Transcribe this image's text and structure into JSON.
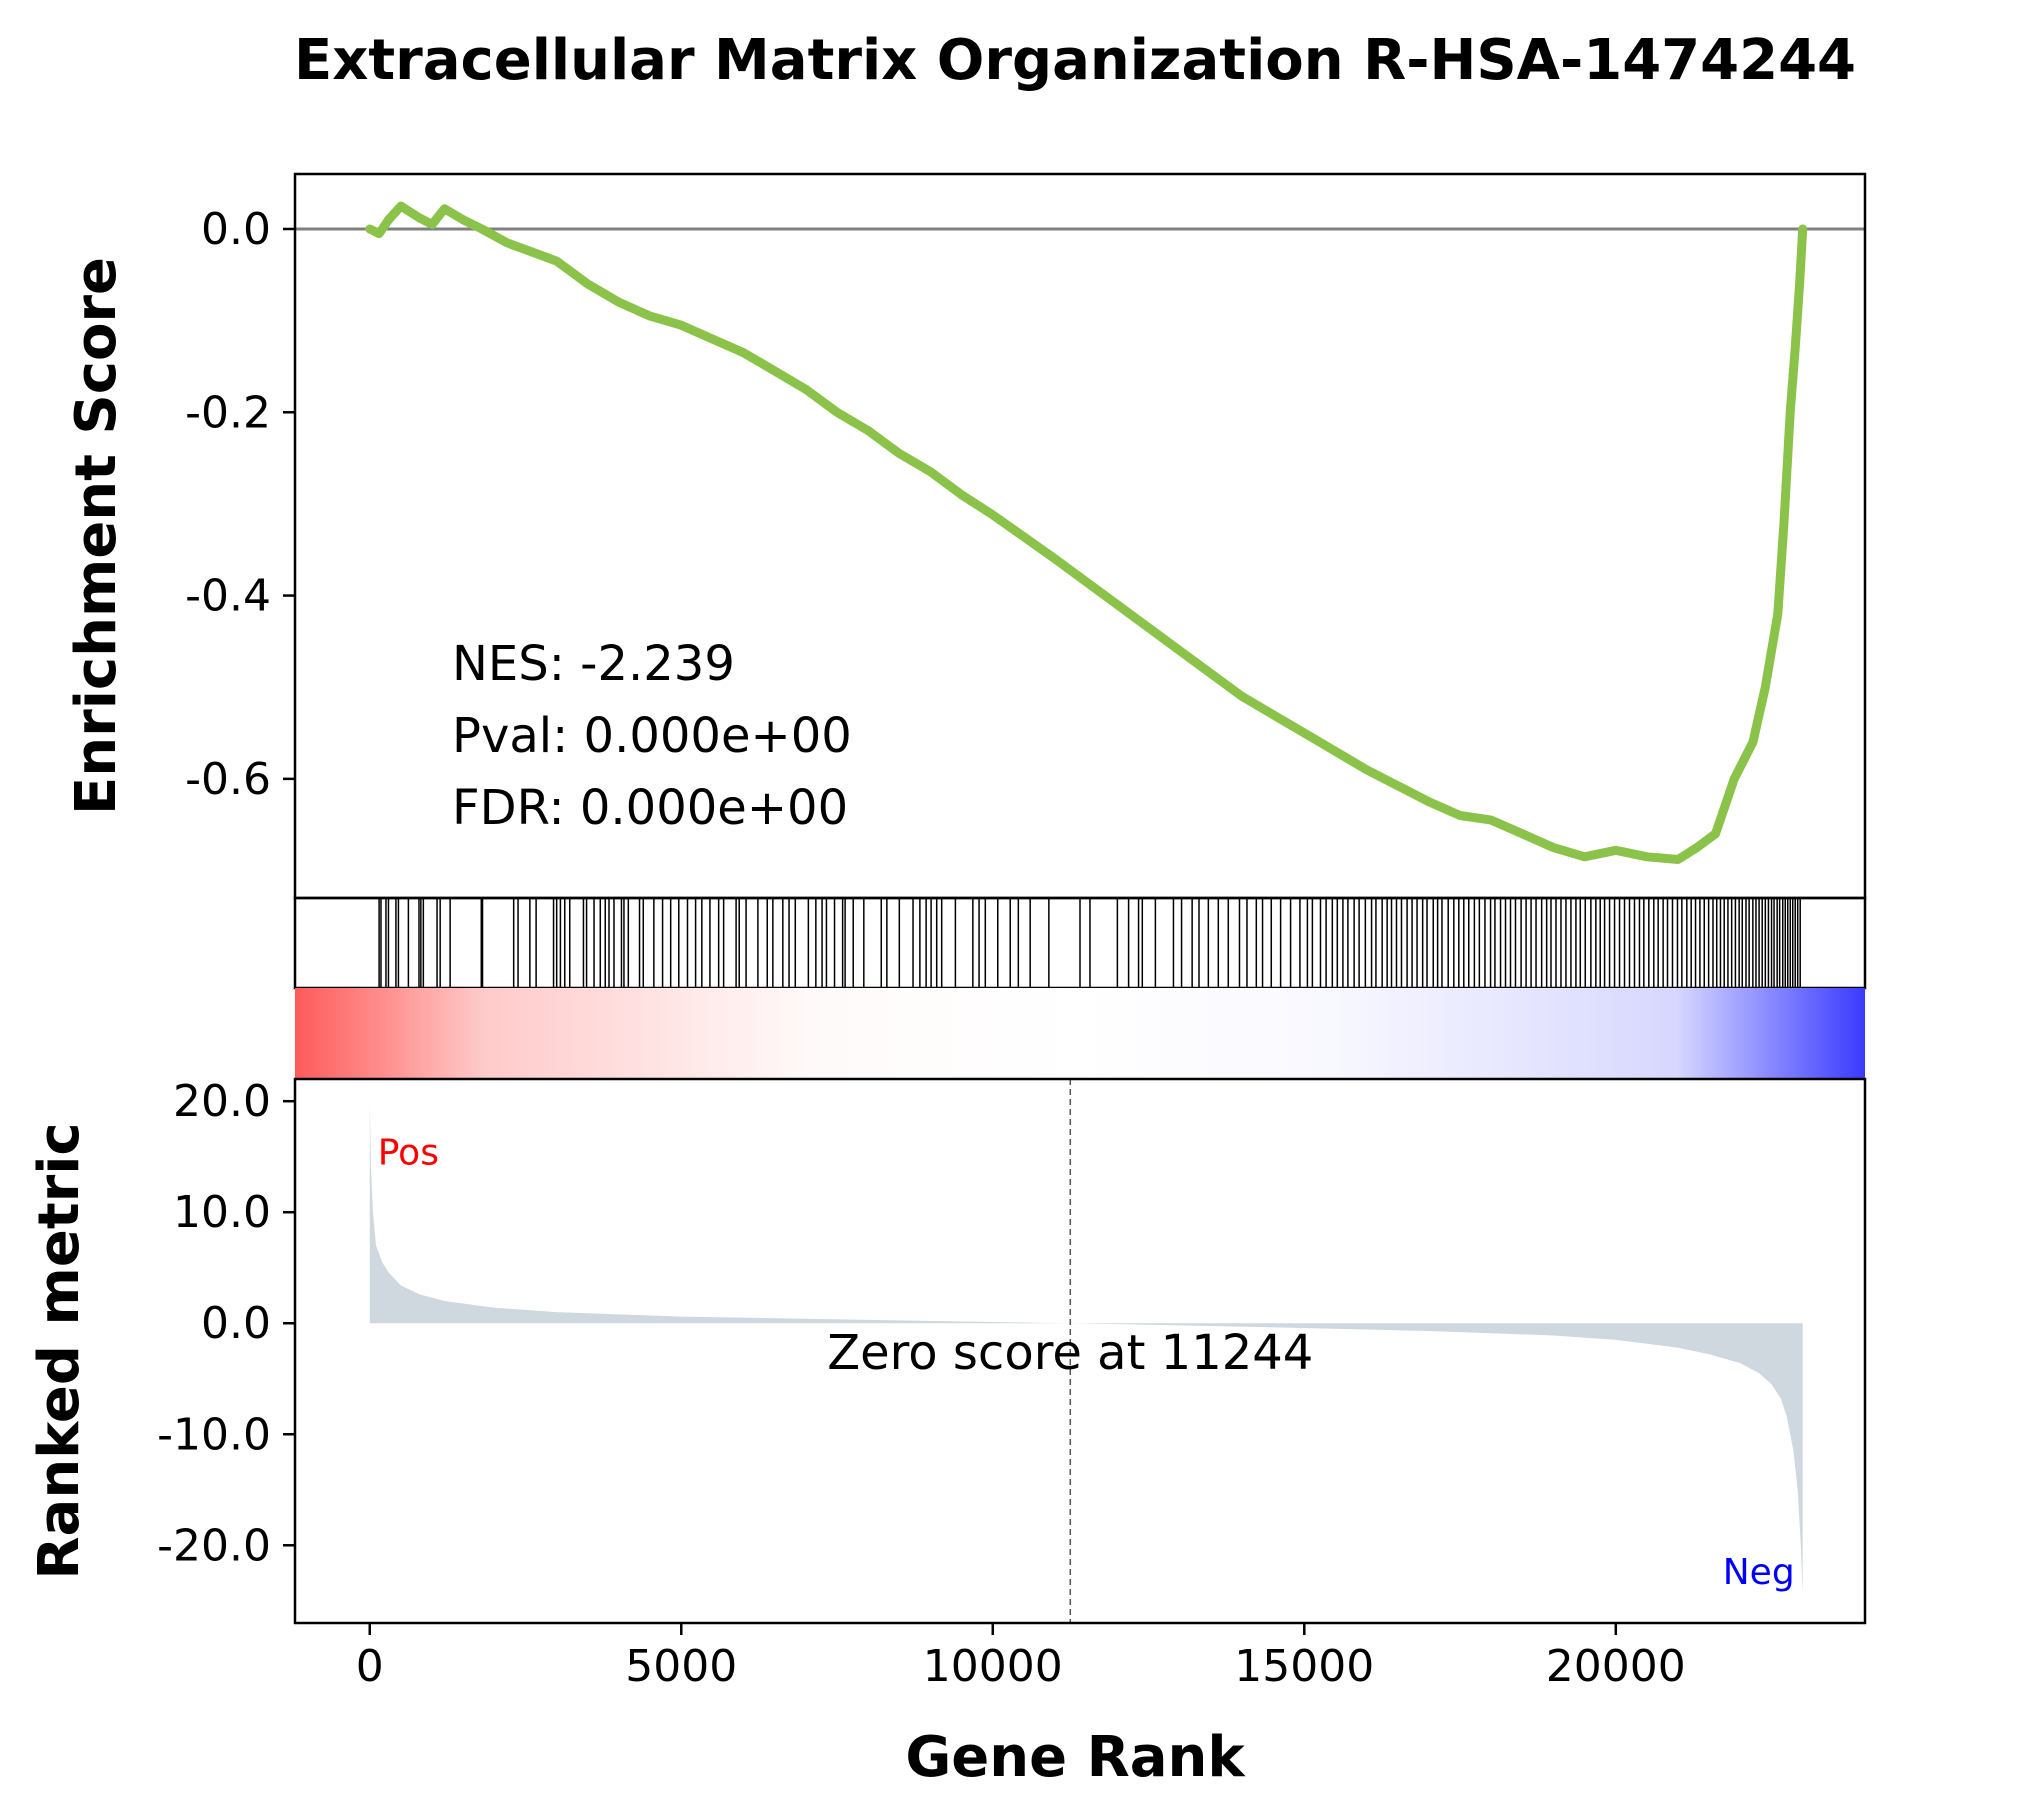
{
  "chart_data": {
    "type": "line",
    "title": "Extracellular Matrix Organization R-HSA-1474244",
    "colors": {
      "es_line": "#8bc34a",
      "baseline": "#808080",
      "metric_fill": "#cfd8df",
      "pos": "#ff0000",
      "neg": "#0000ff",
      "hits": "#000000"
    },
    "xlabel": "Gene Rank",
    "xlim": [
      -1200,
      24000
    ],
    "x_ticks": [
      0,
      5000,
      10000,
      15000,
      20000
    ],
    "enrichment": {
      "ylabel": "Enrichment Score",
      "ylim": [
        -0.73,
        0.06
      ],
      "y_ticks": [
        0.0,
        -0.2,
        -0.4,
        -0.6
      ],
      "y_tick_labels": [
        "0.0",
        "-0.2",
        "-0.4",
        "-0.6"
      ],
      "curve": {
        "x": [
          0,
          150,
          300,
          500,
          800,
          1000,
          1200,
          1500,
          1800,
          2200,
          2600,
          3000,
          3500,
          4000,
          4500,
          5000,
          5500,
          6000,
          6500,
          7000,
          7500,
          8000,
          8500,
          9000,
          9500,
          10000,
          11000,
          12000,
          13000,
          14000,
          15000,
          16000,
          17000,
          17500,
          18000,
          18500,
          19000,
          19500,
          20000,
          20500,
          21000,
          21300,
          21600,
          21900,
          22200,
          22400,
          22600,
          22700,
          22800,
          22880,
          22950,
          23000
        ],
        "y": [
          0.0,
          -0.005,
          0.01,
          0.025,
          0.012,
          0.005,
          0.022,
          0.01,
          0.0,
          -0.015,
          -0.025,
          -0.035,
          -0.06,
          -0.08,
          -0.095,
          -0.105,
          -0.12,
          -0.135,
          -0.155,
          -0.175,
          -0.2,
          -0.22,
          -0.245,
          -0.265,
          -0.29,
          -0.312,
          -0.36,
          -0.41,
          -0.46,
          -0.51,
          -0.55,
          -0.59,
          -0.625,
          -0.64,
          -0.645,
          -0.66,
          -0.675,
          -0.685,
          -0.678,
          -0.685,
          -0.688,
          -0.675,
          -0.66,
          -0.6,
          -0.56,
          -0.5,
          -0.42,
          -0.32,
          -0.2,
          -0.13,
          -0.06,
          0.0
        ]
      },
      "annotations": [
        "NES: -2.239",
        "Pval: 0.000e+00",
        "FDR: 0.000e+00"
      ]
    },
    "hits": [
      150,
      180,
      260,
      300,
      420,
      460,
      620,
      790,
      820,
      860,
      1080,
      1130,
      1290,
      1790,
      1810,
      2310,
      2380,
      2570,
      2670,
      2950,
      3000,
      3060,
      3130,
      3210,
      3430,
      3480,
      3600,
      3700,
      3780,
      3840,
      3920,
      4040,
      4080,
      4150,
      4330,
      4390,
      4560,
      4700,
      4830,
      4960,
      5100,
      5230,
      5330,
      5460,
      5600,
      5680,
      5880,
      5930,
      6040,
      6230,
      6380,
      6470,
      6630,
      6730,
      6830,
      7040,
      7160,
      7260,
      7330,
      7460,
      7590,
      7630,
      7760,
      7930,
      8210,
      8300,
      8500,
      8720,
      8830,
      8930,
      9010,
      9100,
      9180,
      9400,
      9680,
      9780,
      9880,
      10080,
      10280,
      10410,
      10600,
      10900,
      11400,
      11560,
      12000,
      12180,
      12340,
      12400,
      12610,
      12900,
      13030,
      13200,
      13310,
      13460,
      13620,
      13780,
      13960,
      14080,
      14230,
      14330,
      14470,
      14620,
      14780,
      14930,
      15050,
      15130,
      15260,
      15350,
      15450,
      15530,
      15620,
      15700,
      15800,
      15880,
      15980,
      16080,
      16150,
      16250,
      16330,
      16400,
      16480,
      16560,
      16650,
      16730,
      16810,
      16900,
      16970,
      17070,
      17140,
      17210,
      17310,
      17400,
      17480,
      17560,
      17640,
      17730,
      17810,
      17900,
      17990,
      18060,
      18150,
      18230,
      18310,
      18390,
      18480,
      18560,
      18640,
      18720,
      18810,
      18890,
      18960,
      19040,
      19120,
      19200,
      19280,
      19360,
      19430,
      19510,
      19600,
      19680,
      19750,
      19820,
      19900,
      19980,
      20060,
      20140,
      20220,
      20300,
      20380,
      20450,
      20530,
      20610,
      20680,
      20760,
      20830,
      20910,
      20990,
      21060,
      21140,
      21210,
      21280,
      21350,
      21420,
      21490,
      21560,
      21620,
      21680,
      21740,
      21800,
      21860,
      21920,
      21980,
      22030,
      22090,
      22140,
      22200,
      22250,
      22300,
      22350,
      22400,
      22450,
      22500,
      22540,
      22590,
      22630,
      22680,
      22720,
      22760,
      22800,
      22840,
      22880,
      22920,
      22960
    ],
    "metric": {
      "ylabel": "Ranked metric",
      "ylim": [
        -27,
        22
      ],
      "y_ticks": [
        20,
        10,
        0,
        -10,
        -20
      ],
      "y_tick_labels": [
        "20.0",
        "10.0",
        "0.0",
        "-10.0",
        "-20.0"
      ],
      "x": [
        0,
        20,
        50,
        100,
        200,
        300,
        500,
        800,
        1200,
        2000,
        3000,
        5000,
        8000,
        11244,
        14000,
        17000,
        19000,
        20000,
        21000,
        21500,
        22000,
        22300,
        22500,
        22650,
        22750,
        22850,
        22920,
        22970,
        23000
      ],
      "y": [
        19.7,
        14.0,
        10.0,
        7.0,
        5.5,
        4.6,
        3.4,
        2.6,
        2.0,
        1.4,
        1.0,
        0.6,
        0.3,
        0.0,
        -0.3,
        -0.7,
        -1.1,
        -1.5,
        -2.2,
        -2.8,
        -3.6,
        -4.5,
        -5.5,
        -6.8,
        -8.5,
        -11.5,
        -15.0,
        -20.0,
        -24.5
      ],
      "zero_score_label": "Zero score at 11244",
      "zero_x": 11244,
      "pos_label": "Pos",
      "neg_label": "Neg"
    }
  }
}
